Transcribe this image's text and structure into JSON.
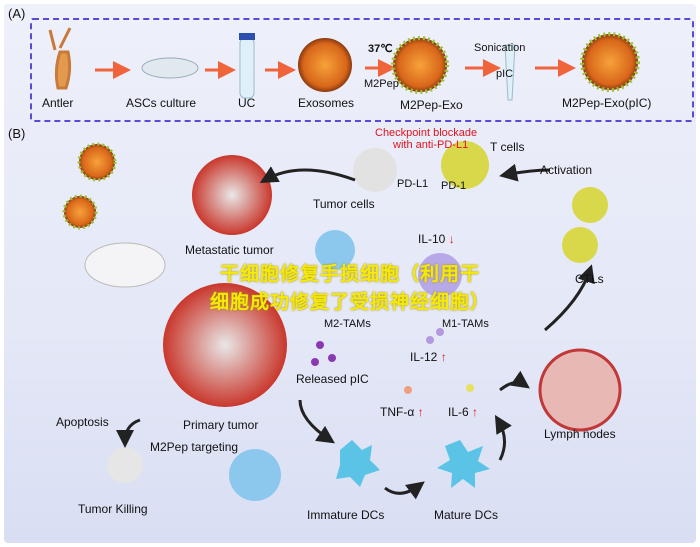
{
  "panel_a": {
    "letter": "(A)",
    "steps": [
      "Antler",
      "ASCs culture",
      "UC",
      "Exosomes",
      "M2Pep-Exo",
      "M2Pep-Exo(pIC)"
    ],
    "temperature": "37℃",
    "peptide": "M2Pep",
    "sonication": "Sonication",
    "pic": "pIC"
  },
  "panel_b": {
    "letter": "(B)",
    "checkpoint_line1": "Checkpoint blockade",
    "checkpoint_line2": "with anti-PD-L1",
    "t_cells": "T cells",
    "pd_l1": "PD-L1",
    "pd_1": "PD-1",
    "tumor_cells": "Tumor cells",
    "activation": "Activation",
    "metastatic_tumor": "Metastatic tumor",
    "il10": "IL-10",
    "m2_tams": "M2-TAMs",
    "m1_tams": "M1-TAMs",
    "ctls": "CTLs",
    "il12": "IL-12",
    "released_pic": "Released pIC",
    "tnf": "TNF-α",
    "il6": "IL-6",
    "primary_tumor": "Primary tumor",
    "apoptosis": "Apoptosis",
    "m2pep_targeting": "M2Pep targeting",
    "lymph_nodes": "Lymph nodes",
    "tumor_killing": "Tumor Killing",
    "immature_dcs": "Immature DCs",
    "mature_dcs": "Mature DCs",
    "down_arrow": "↓",
    "up_arrow": "↑"
  },
  "overlay": {
    "line1": "干细胞修复手损细胞（利用干",
    "line2": "细胞成功修复了受损神经细胞）"
  },
  "colors": {
    "dash_border": "#5a4bd6",
    "arrow": "#f0643c",
    "red_text": "#e0141e",
    "overlay_text": "#f5e90a"
  }
}
